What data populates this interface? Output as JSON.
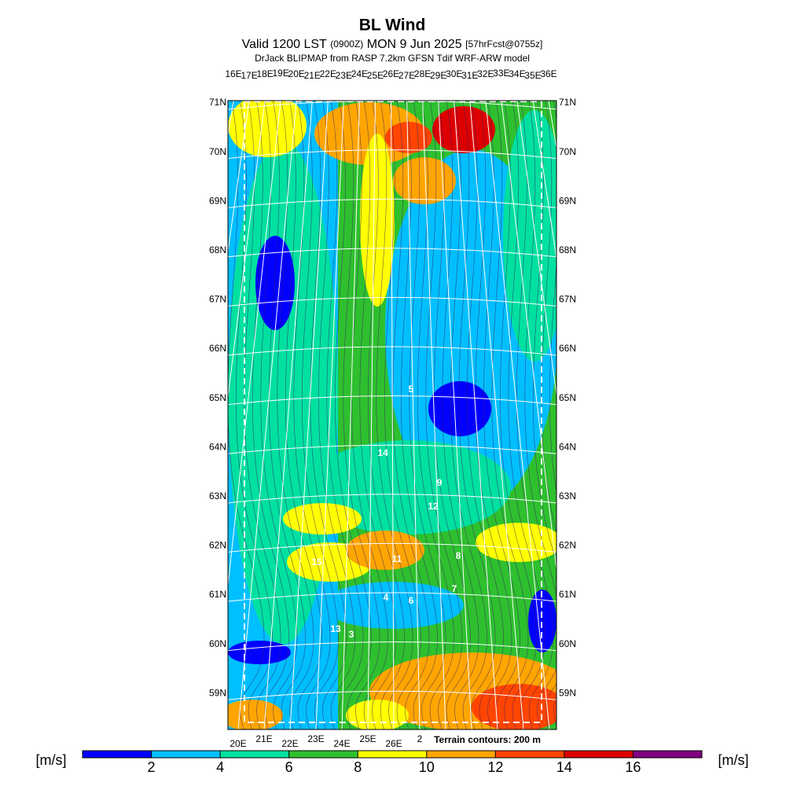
{
  "header": {
    "title": "BL Wind",
    "valid_prefix": "Valid 1200 LST",
    "utc": "(0900Z)",
    "date": "MON 9 Jun 2025",
    "forecast": "[57hrFcst@0755z]",
    "subtitle": "DrJack BLIPMAP from RASP 7.2km GFSN Tdif WRF-ARW model"
  },
  "map": {
    "top_longitudes": [
      "16E",
      "17E",
      "18E",
      "19E",
      "20E",
      "21E",
      "22E",
      "23E",
      "24E",
      "25E",
      "26E",
      "27E",
      "28E",
      "29E",
      "30E",
      "31E",
      "32E",
      "33E",
      "34E",
      "35E",
      "36E"
    ],
    "latitudes": [
      "71N",
      "70N",
      "69N",
      "68N",
      "67N",
      "66N",
      "65N",
      "64N",
      "63N",
      "62N",
      "61N",
      "60N",
      "59N"
    ],
    "bottom_longitudes": [
      "20E",
      "21E",
      "22E",
      "23E",
      "24E",
      "25E",
      "26E",
      "2"
    ],
    "terrain_note": "Terrain contours: 200 m",
    "field_labels": [
      "5",
      "14",
      "9",
      "12",
      "8",
      "15",
      "11",
      "4",
      "6",
      "7",
      "13",
      "3"
    ]
  },
  "legend": {
    "unit": "[m/s]",
    "colors": [
      "#0000ff",
      "#00bfff",
      "#00e0a0",
      "#2ec02e",
      "#ffff00",
      "#ffa500",
      "#ff4500",
      "#dd0000",
      "#800080"
    ],
    "ticks": [
      2,
      4,
      6,
      8,
      10,
      12,
      14,
      16
    ]
  }
}
